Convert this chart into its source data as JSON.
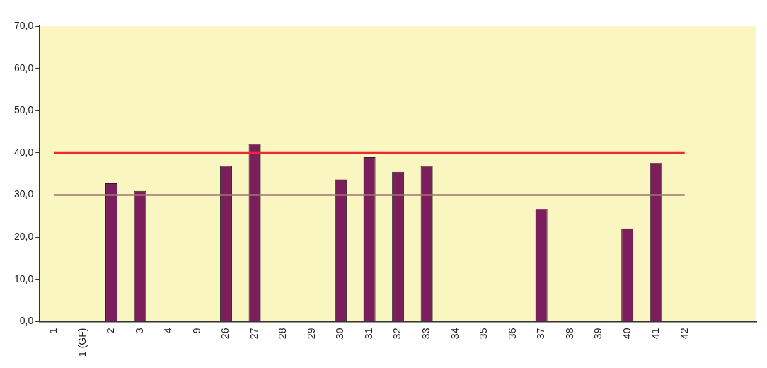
{
  "chart_data": {
    "type": "bar",
    "categories": [
      "1",
      "1 (GF)",
      "2",
      "3",
      "4",
      "9",
      "26",
      "27",
      "28",
      "29",
      "30",
      "31",
      "32",
      "33",
      "34",
      "35",
      "36",
      "37",
      "38",
      "39",
      "40",
      "41",
      "42",
      null,
      null
    ],
    "values": [
      null,
      null,
      32.8,
      31.0,
      null,
      null,
      36.9,
      42.1,
      null,
      null,
      33.7,
      39.0,
      35.5,
      36.9,
      null,
      null,
      null,
      26.7,
      null,
      null,
      22.1,
      37.6,
      null,
      null,
      null
    ],
    "color": "#7b1f5c",
    "ylim": [
      0,
      70
    ],
    "yticks": [
      {
        "value": 0,
        "label": "0,0"
      },
      {
        "value": 10,
        "label": "10,0"
      },
      {
        "value": 20,
        "label": "20,0"
      },
      {
        "value": 30,
        "label": "30,0"
      },
      {
        "value": 40,
        "label": "40,0"
      },
      {
        "value": 50,
        "label": "50,0"
      },
      {
        "value": 60,
        "label": "60,0"
      },
      {
        "value": 70,
        "label": "70,0"
      }
    ],
    "ref_lines": [
      {
        "axis": "y",
        "value": 40,
        "color": "#ee2a2a"
      },
      {
        "axis": "y",
        "value": 30,
        "color": "#a07470"
      }
    ],
    "grid": false,
    "legend": false
  }
}
